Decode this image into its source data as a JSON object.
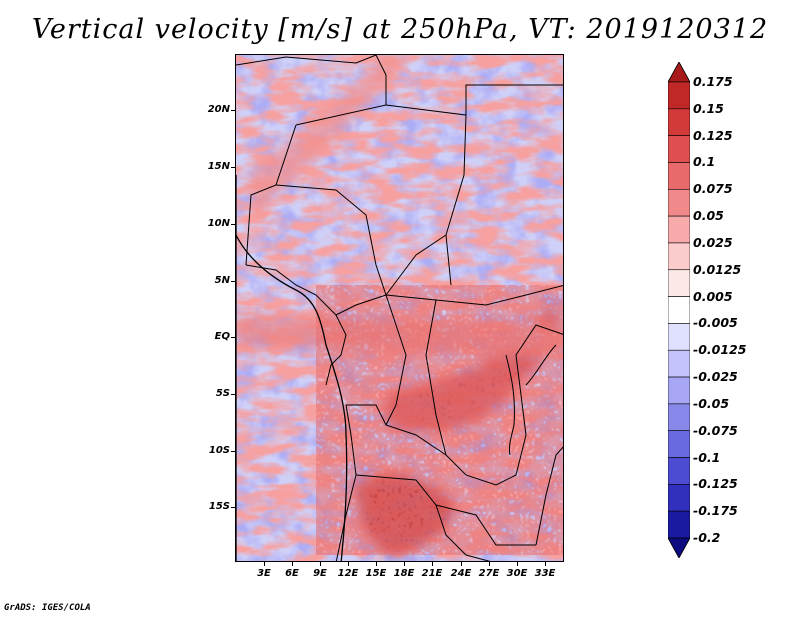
{
  "title": "Vertical velocity [m/s] at 250hPa, VT: 2019120312",
  "credit": "GrADS: IGES/COLA",
  "map": {
    "region": "Central & Southern Africa",
    "lat_range": [
      -19.5,
      24.5
    ],
    "lon_range": [
      0,
      35
    ],
    "y_labels": [
      "20N",
      "15N",
      "10N",
      "5N",
      "EQ",
      "5S",
      "10S",
      "15S"
    ],
    "x_labels": [
      "3E",
      "6E",
      "9E",
      "12E",
      "15E",
      "18E",
      "21E",
      "24E",
      "27E",
      "30E",
      "33E"
    ]
  },
  "colorbar": {
    "levels": [
      "0.175",
      "0.15",
      "0.125",
      "0.1",
      "0.075",
      "0.05",
      "0.025",
      "0.0125",
      "0.005",
      "-0.005",
      "-0.0125",
      "-0.025",
      "-0.05",
      "-0.075",
      "-0.1",
      "-0.125",
      "-0.175",
      "-0.2"
    ],
    "colors": [
      "#a81a1a",
      "#c02828",
      "#d23a3a",
      "#de5050",
      "#e86a6a",
      "#f08a8a",
      "#f6aaaa",
      "#fbcccc",
      "#fde8e8",
      "#ffffff",
      "#e0e0ff",
      "#c4c4fa",
      "#a6a6f4",
      "#8888ea",
      "#6a6ae0",
      "#4c4cd2",
      "#3030bc",
      "#1a1aa0",
      "#0c0c80"
    ]
  }
}
